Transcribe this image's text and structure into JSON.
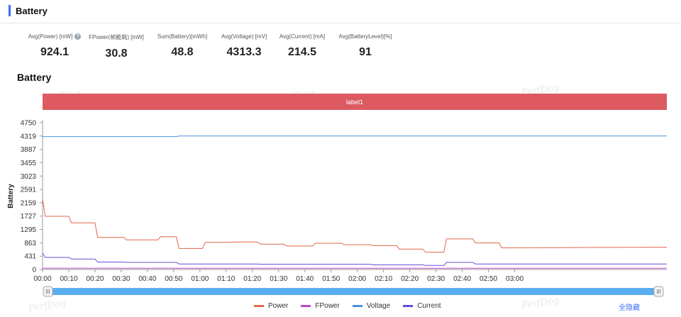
{
  "header": {
    "title": "Battery"
  },
  "stats": [
    {
      "label": "Avg(Power) [mW]",
      "value": "924.1",
      "help": true
    },
    {
      "label": "FPower(帧能耗) [mW]",
      "value": "30.8"
    },
    {
      "label": "Sum(Battery)[mWh]",
      "value": "48.8"
    },
    {
      "label": "Avg(Voltage) [mV]",
      "value": "4313.3"
    },
    {
      "label": "Avg(Current) [mA]",
      "value": "214.5"
    },
    {
      "label": "Avg(BatteryLevel)[%]",
      "value": "91"
    }
  ],
  "watermark": "PerfDog",
  "hide_all_label": "全隐藏",
  "chart_data": {
    "type": "line",
    "title": "Battery",
    "ylabel": "Battery",
    "xlabel": "",
    "ylim": [
      0,
      4750
    ],
    "yticks": [
      0,
      431,
      863,
      1295,
      1727,
      2159,
      2591,
      3023,
      3455,
      3887,
      4319,
      4750
    ],
    "x_unit_seconds": true,
    "xlim_seconds": [
      0,
      238
    ],
    "xticks": [
      "00:00",
      "00:10",
      "00:20",
      "00:30",
      "00:40",
      "00:50",
      "01:00",
      "01:10",
      "01:20",
      "01:30",
      "01:40",
      "01:50",
      "02:00",
      "02:10",
      "02:20",
      "02:30",
      "02:40",
      "02:50",
      "03:00"
    ],
    "label_band": "label1",
    "grid": false,
    "legend": "bottom",
    "series": [
      {
        "name": "Power",
        "color": "#e0674a",
        "points": [
          [
            0,
            2290
          ],
          [
            1,
            1720
          ],
          [
            10,
            1720
          ],
          [
            11,
            1510
          ],
          [
            20,
            1510
          ],
          [
            21,
            1040
          ],
          [
            31,
            1040
          ],
          [
            32,
            960
          ],
          [
            44,
            960
          ],
          [
            45,
            1060
          ],
          [
            51,
            1060
          ],
          [
            52,
            680
          ],
          [
            61,
            680
          ],
          [
            62,
            880
          ],
          [
            72,
            880
          ],
          [
            73,
            890
          ],
          [
            82,
            890
          ],
          [
            83,
            820
          ],
          [
            92,
            820
          ],
          [
            93,
            760
          ],
          [
            103,
            760
          ],
          [
            104,
            850
          ],
          [
            114,
            850
          ],
          [
            115,
            800
          ],
          [
            125,
            800
          ],
          [
            126,
            770
          ],
          [
            135,
            770
          ],
          [
            136,
            660
          ],
          [
            145,
            660
          ],
          [
            146,
            560
          ],
          [
            153,
            560
          ],
          [
            154,
            990
          ],
          [
            164,
            990
          ],
          [
            165,
            860
          ],
          [
            174,
            860
          ],
          [
            175,
            700
          ],
          [
            238,
            720
          ]
        ]
      },
      {
        "name": "FPower",
        "color": "#c147c9",
        "points": [
          [
            0,
            40
          ],
          [
            238,
            40
          ]
        ]
      },
      {
        "name": "Voltage",
        "color": "#4a90e2",
        "points": [
          [
            0,
            4300
          ],
          [
            51,
            4300
          ],
          [
            52,
            4318
          ],
          [
            238,
            4318
          ]
        ]
      },
      {
        "name": "Current",
        "color": "#6a4ad8",
        "points": [
          [
            0,
            540
          ],
          [
            1,
            390
          ],
          [
            10,
            390
          ],
          [
            11,
            340
          ],
          [
            20,
            340
          ],
          [
            21,
            240
          ],
          [
            31,
            240
          ],
          [
            32,
            230
          ],
          [
            51,
            230
          ],
          [
            52,
            180
          ],
          [
            82,
            180
          ],
          [
            83,
            170
          ],
          [
            125,
            170
          ],
          [
            126,
            150
          ],
          [
            145,
            150
          ],
          [
            146,
            130
          ],
          [
            153,
            130
          ],
          [
            154,
            230
          ],
          [
            164,
            230
          ],
          [
            165,
            180
          ],
          [
            238,
            180
          ]
        ]
      }
    ]
  }
}
